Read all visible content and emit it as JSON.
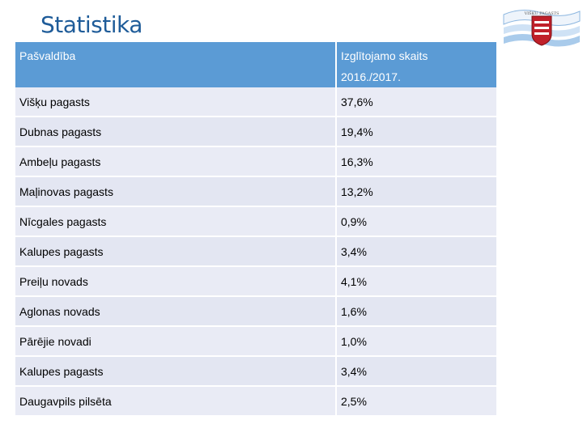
{
  "title": "Statistika",
  "logo": {
    "text": "VIŠĶU PAGASTS"
  },
  "table": {
    "headers": [
      "Pašvaldība",
      "Izglītojamo skaits",
      "2016./2017."
    ],
    "rows": [
      {
        "name": "Višķu pagasts",
        "value": "37,6%"
      },
      {
        "name": "Dubnas pagasts",
        "value": "19,4%"
      },
      {
        "name": "Ambeļu pagasts",
        "value": "16,3%"
      },
      {
        "name": "Maļinovas pagasts",
        "value": "13,2%"
      },
      {
        "name": "Nīcgales pagasts",
        "value": "0,9%"
      },
      {
        "name": "Kalupes pagasts",
        "value": "3,4%"
      },
      {
        "name": "Preiļu novads",
        "value": "4,1%"
      },
      {
        "name": "Aglonas novads",
        "value": "1,6%"
      },
      {
        "name": "Pārējie novadi",
        "value": "1,0%"
      },
      {
        "name": "Kalupes pagasts",
        "value": "3,4%"
      },
      {
        "name": "Daugavpils pilsēta",
        "value": "2,5%"
      }
    ]
  },
  "colors": {
    "header_bg": "#5b9bd5",
    "row_bg": "#e9ebf5",
    "title": "#1f5c99",
    "logo_red": "#c0202a"
  }
}
